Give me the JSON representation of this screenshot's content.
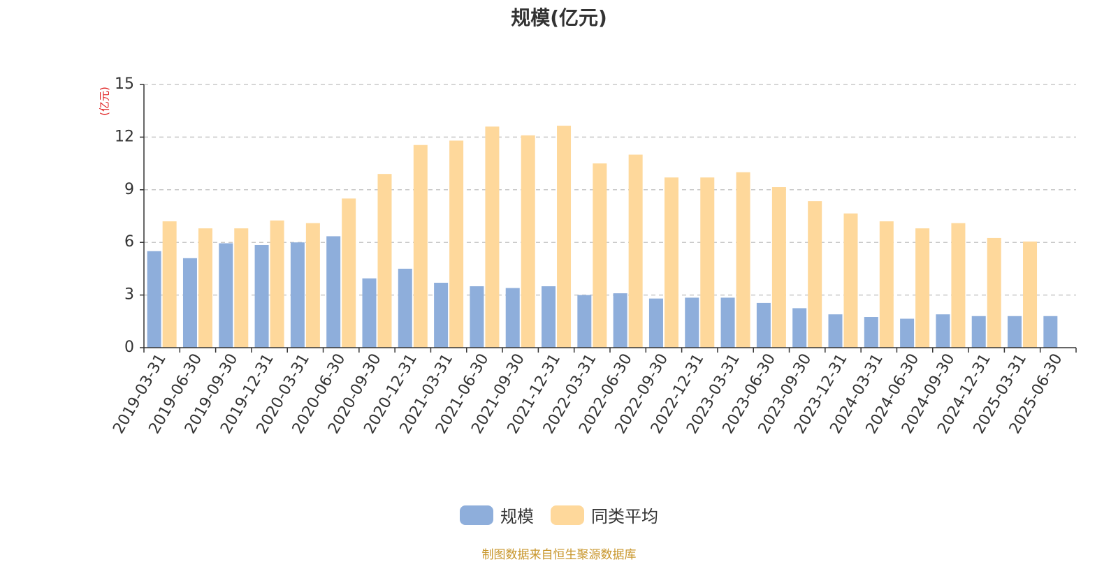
{
  "chart_data": {
    "type": "bar",
    "title": "规模(亿元)",
    "ylabel": "(亿元)",
    "xlabel": "",
    "ylim": [
      0,
      15
    ],
    "yticks": [
      0,
      3,
      6,
      9,
      12,
      15
    ],
    "grid": true,
    "legend_position": "bottom-center",
    "categories": [
      "2019-03-31",
      "2019-06-30",
      "2019-09-30",
      "2019-12-31",
      "2020-03-31",
      "2020-06-30",
      "2020-09-30",
      "2020-12-31",
      "2021-03-31",
      "2021-06-30",
      "2021-09-30",
      "2021-12-31",
      "2022-03-31",
      "2022-06-30",
      "2022-09-30",
      "2022-12-31",
      "2023-03-31",
      "2023-06-30",
      "2023-09-30",
      "2023-12-31",
      "2024-03-31",
      "2024-06-30",
      "2024-09-30",
      "2024-12-31",
      "2025-03-31",
      "2025-06-30"
    ],
    "series": [
      {
        "name": "规模",
        "color": "#8eaedb",
        "values": [
          5.5,
          5.1,
          5.95,
          5.85,
          6.0,
          6.35,
          3.95,
          4.5,
          3.7,
          3.5,
          3.4,
          3.5,
          3.0,
          3.1,
          2.8,
          2.85,
          2.85,
          2.55,
          2.25,
          1.9,
          1.75,
          1.65,
          1.9,
          1.8,
          1.8,
          1.8
        ]
      },
      {
        "name": "同类平均",
        "color": "#fed89b",
        "values": [
          7.2,
          6.8,
          6.8,
          7.25,
          7.1,
          8.5,
          9.9,
          11.55,
          11.8,
          12.6,
          12.1,
          12.65,
          10.5,
          11.0,
          9.7,
          9.7,
          10.0,
          9.15,
          8.35,
          7.65,
          7.2,
          6.8,
          7.1,
          6.25,
          6.05,
          null
        ]
      }
    ]
  },
  "footer": {
    "source": "制图数据来自恒生聚源数据库"
  }
}
